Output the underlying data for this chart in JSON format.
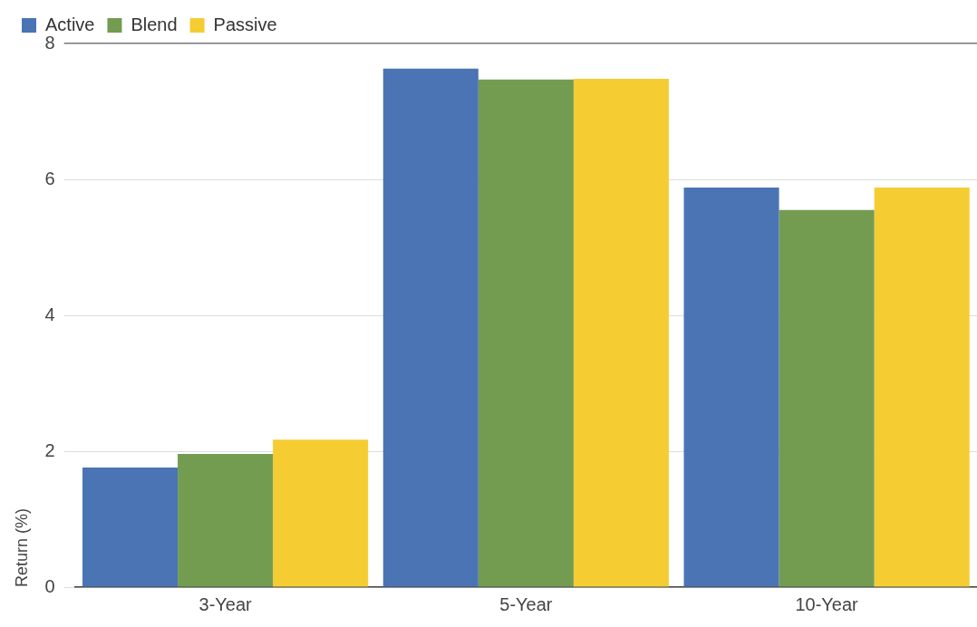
{
  "chart_data": {
    "type": "bar",
    "ylabel": "Return (%)",
    "categories": [
      "3-Year",
      "5-Year",
      "10-Year"
    ],
    "series": [
      {
        "name": "Active",
        "color": "#4a74b4",
        "values": [
          1.76,
          7.63,
          5.88
        ]
      },
      {
        "name": "Blend",
        "color": "#739c51",
        "values": [
          1.96,
          7.47,
          5.55
        ]
      },
      {
        "name": "Passive",
        "color": "#f5cd33",
        "values": [
          2.17,
          7.48,
          5.88
        ]
      }
    ],
    "ylim": [
      0,
      8
    ],
    "yticks": [
      0,
      2,
      4,
      6,
      8
    ],
    "grid": "y",
    "legend": "top left"
  }
}
